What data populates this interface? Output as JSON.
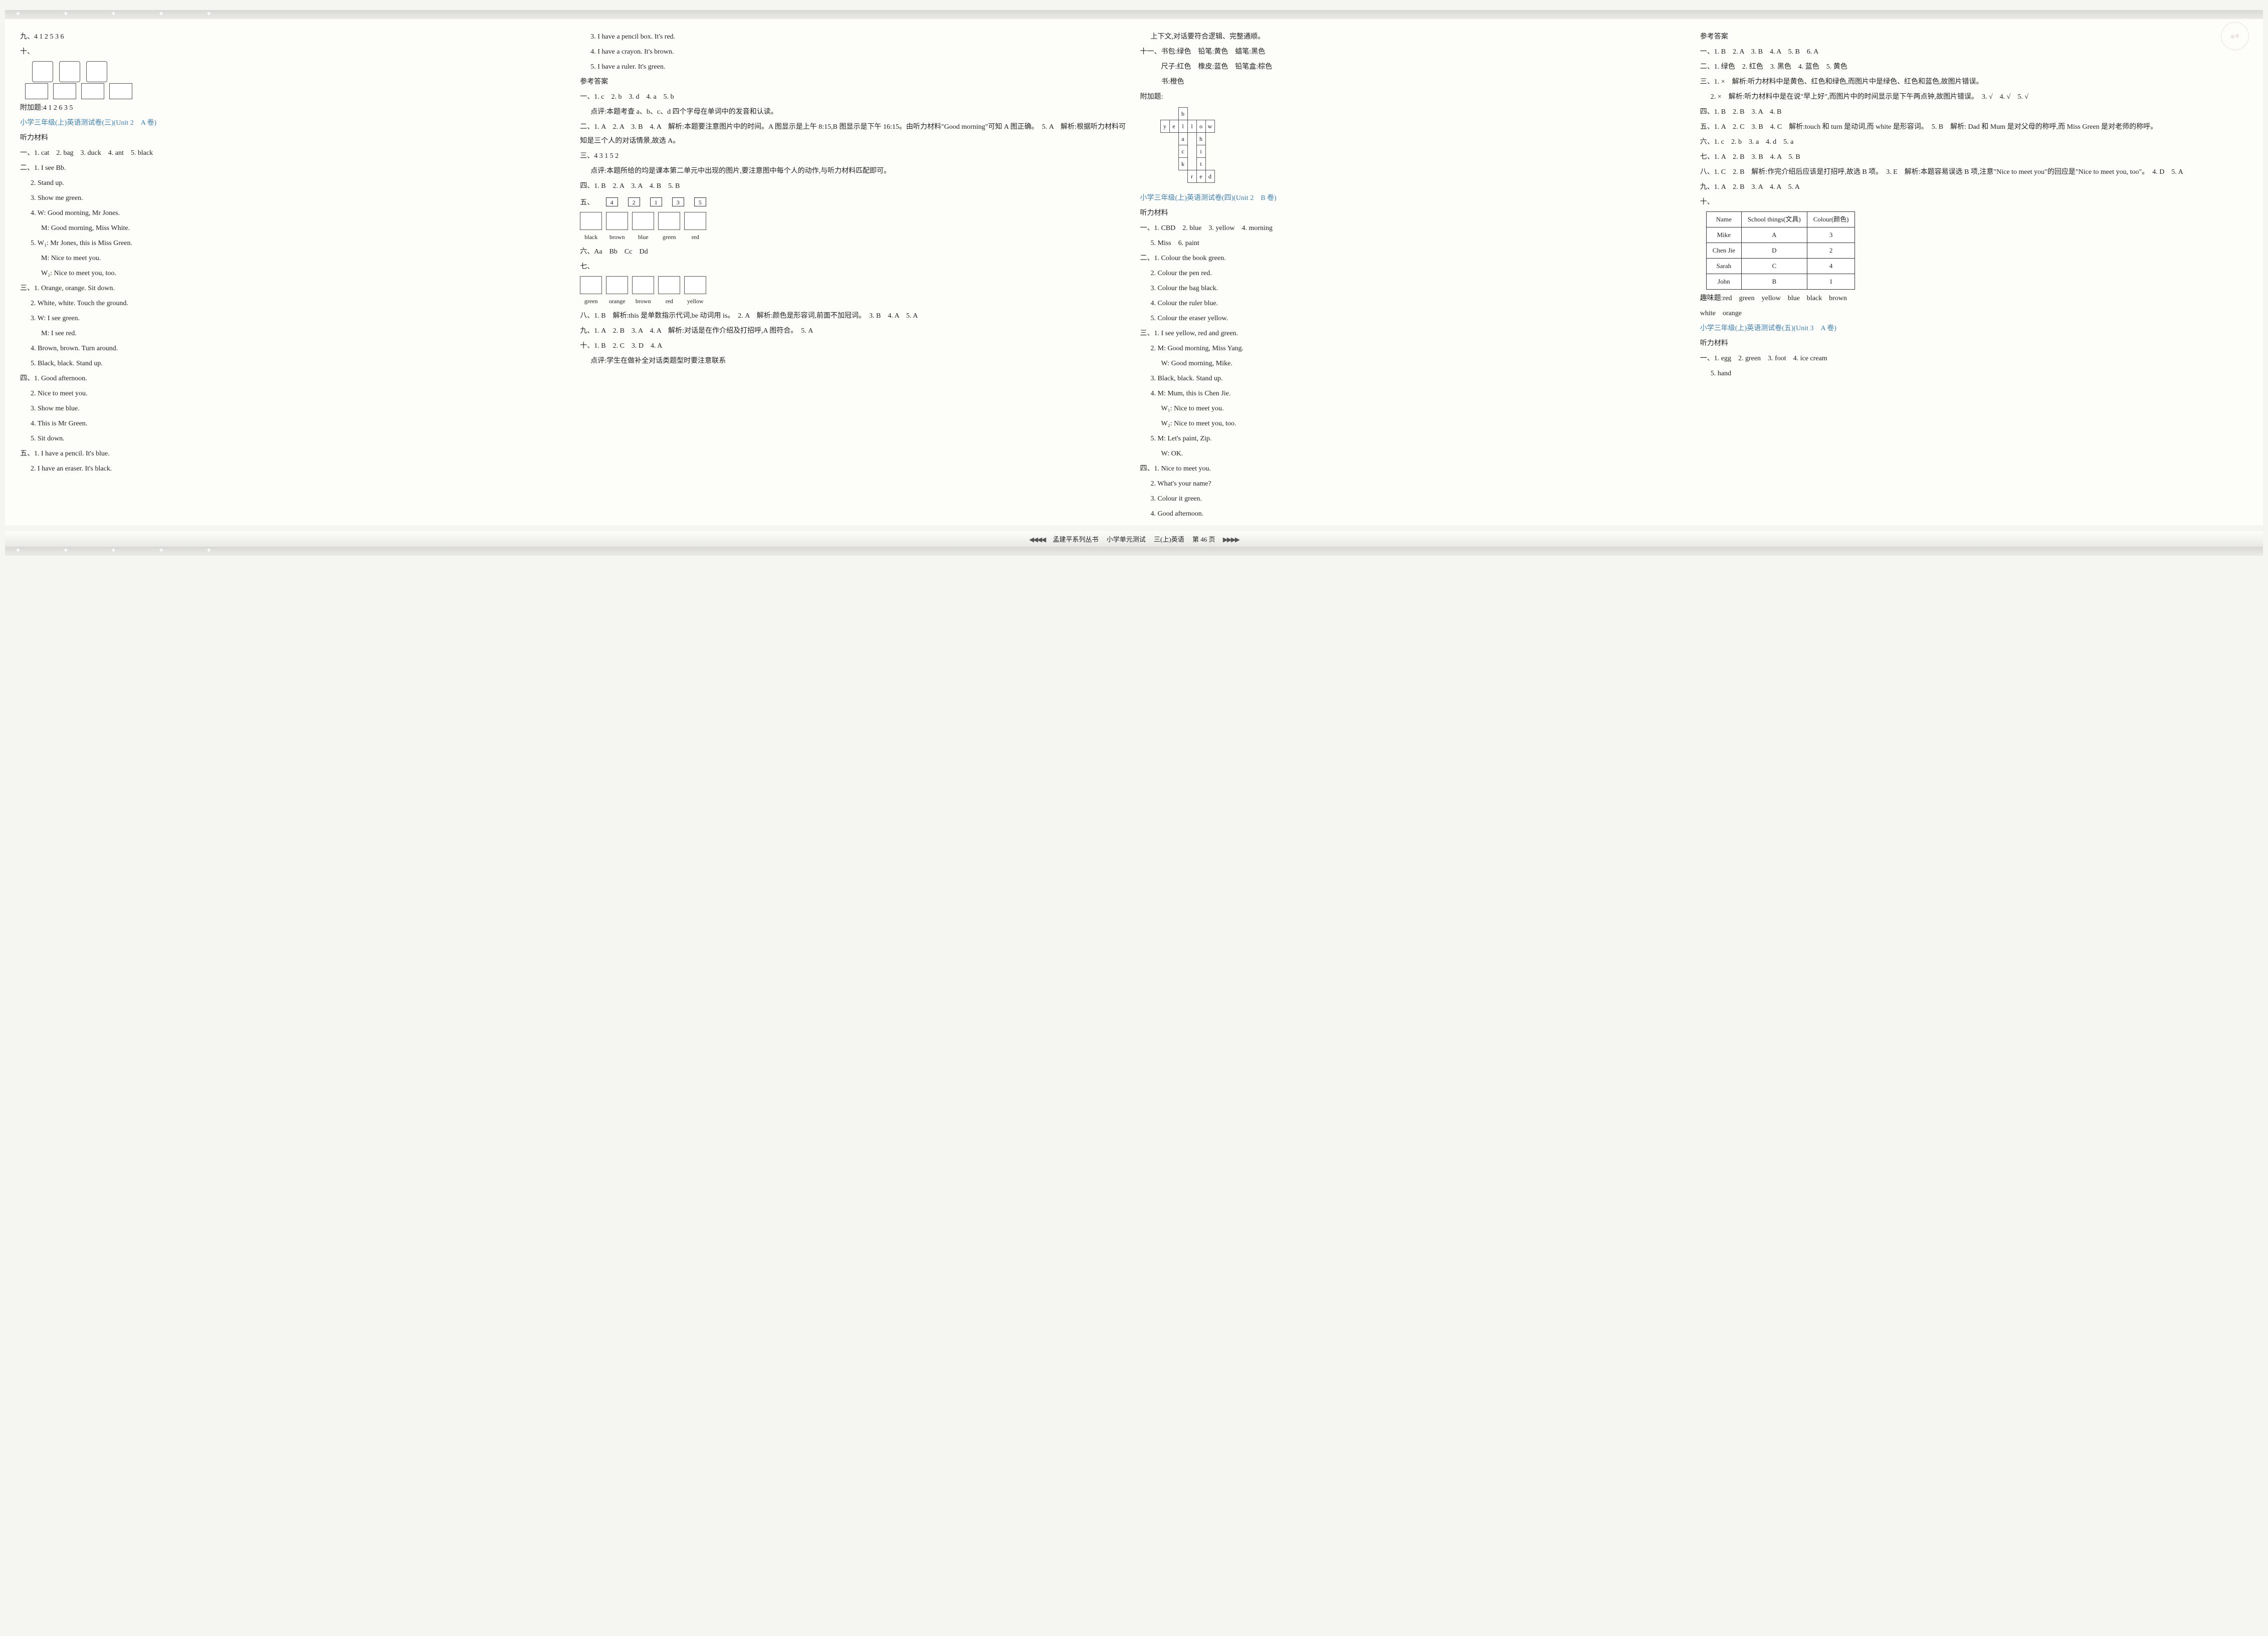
{
  "colors": {
    "section_title": "#3b7fb5",
    "text": "#222222",
    "page_bg": "#fdfdfa",
    "body_bg": "#f5f5f2",
    "border": "#333333",
    "stamp": "#ccaaaa"
  },
  "typography": {
    "base_font": "SimSun, 宋体, serif",
    "base_size_pt": 10.5,
    "line_height": 2.0
  },
  "page_footer": {
    "series": "孟建平系列丛书",
    "book": "小学单元测试",
    "grade": "三(上)英语",
    "page_label": "第 46 页",
    "arrow_left": "◀◀◀◀",
    "arrow_right": "▶▶▶▶"
  },
  "stamp_text": "参考",
  "col1": {
    "l01": "九、4 1 2 5 3 6",
    "l02": "十、",
    "l03": "附加题:4 1 2 6 3 5",
    "title1": "小学三年级(上)英语测试卷(三)(Unit 2　A 卷)",
    "l04": "听力材料",
    "l05": "一、1. cat　2. bag　3. duck　4. ant　5. black",
    "l06": "二、1. I see Bb.",
    "l07": "2. Stand up.",
    "l08": "3. Show me green.",
    "l09": "4. W: Good morning, Mr Jones.",
    "l10": "M: Good morning, Miss White.",
    "l11": "5. W₁: Mr Jones, this is Miss Green.",
    "l12": "M: Nice to meet you.",
    "l13": "W₂: Nice to meet you, too.",
    "l14": "三、1. Orange, orange. Sit down.",
    "l15": "2. White, white. Touch the ground.",
    "l16": "3. W: I see green.",
    "l17": "M: I see red.",
    "l18": "4. Brown, brown. Turn around.",
    "l19": "5. Black, black. Stand up.",
    "l20": "四、1. Good afternoon.",
    "l21": "2. Nice to meet you.",
    "l22": "3. Show me blue.",
    "l23": "4. This is Mr Green.",
    "l24": "5. Sit down.",
    "l25": "五、1. I have a pencil. It's blue.",
    "l26": "2. I have an eraser. It's black."
  },
  "col2": {
    "l01": "3. I have a pencil box. It's red.",
    "l02": "4. I have a crayon. It's brown.",
    "l03": "5. I have a ruler. It's green.",
    "l04": "参考答案",
    "l05": "一、1. c　2. b　3. d　4. a　5. b",
    "l06": "点评:本题考查 a、b、c、d 四个字母在单词中的发音和认读。",
    "l07": "二、1. A　2. A　3. B　4. A　解析:本题要注意图片中的时间。A 图显示是上午 8:15,B 图显示是下午 16:15。由听力材料\"Good morning\"可知 A 图正确。　5. A　解析:根据听力材料可知是三个人的对话情景,故选 A。",
    "l08": "三、4 3 1 5 2",
    "l09": "点评:本题所给的均是课本第二单元中出现的图片,要注意图中每个人的动作,与听力材料匹配即可。",
    "l10": "四、1. B　2. A　3. A　4. B　5. B",
    "l11": "五、",
    "numboxes": [
      "4",
      "2",
      "1",
      "3",
      "5"
    ],
    "match1": [
      "black",
      "brown",
      "blue",
      "green",
      "red"
    ],
    "l12": "六、Aa　Bb　Cc　Dd",
    "l13": "七、",
    "match2": [
      "green",
      "orange",
      "brown",
      "red",
      "yellow"
    ],
    "l14": "八、1. B　解析:this 是单数指示代词,be 动词用 is。　2. A　解析:颜色是形容词,前面不加冠词。　3. B　4. A　5. A",
    "l15": "九、1. A　2. B　3. A　4. A　解析:对话是在作介绍及打招呼,A 图符合。　5. A",
    "l16": "十、1. B　2. C　3. D　4. A",
    "l17": "点评:学生在做补全对话类题型时要注意联系"
  },
  "col3": {
    "l01": "上下文,对话要符合逻辑、完整通顺。",
    "l02": "十一、书包:绿色　铅笔:黄色　蜡笔:黑色",
    "l03": "尺子:红色　橡皮:蓝色　铅笔盒:棕色",
    "l04": "书:橙色",
    "l05": "附加题:",
    "cross": {
      "rows": [
        [
          "",
          "",
          "b",
          "",
          ""
        ],
        [
          "y",
          "e",
          "l",
          "l",
          "o",
          "w"
        ],
        [
          "",
          "",
          "a",
          "",
          "h",
          ""
        ],
        [
          "",
          "",
          "c",
          "",
          "i",
          ""
        ],
        [
          "",
          "",
          "k",
          "",
          "t",
          ""
        ],
        [
          "",
          "",
          "",
          "r",
          "e",
          "d"
        ]
      ]
    },
    "title1": "小学三年级(上)英语测试卷(四)(Unit 2　B 卷)",
    "l06": "听力材料",
    "l07": "一、1. CBD　2. blue　3. yellow　4. morning",
    "l08": "5. Miss　6. paint",
    "l09": "二、1. Colour the book green.",
    "l10": "2. Colour the pen red.",
    "l11": "3. Colour the bag black.",
    "l12": "4. Colour the ruler blue.",
    "l13": "5. Colour the eraser yellow.",
    "l14": "三、1. I see yellow, red and green.",
    "l15": "2. M: Good morning, Miss Yang.",
    "l16": "W: Good morning, Mike.",
    "l17": "3. Black, black. Stand up.",
    "l18": "4. M: Mum, this is Chen Jie.",
    "l19": "W₁: Nice to meet you.",
    "l20": "W₂: Nice to meet you, too.",
    "l21": "5. M: Let's paint, Zip.",
    "l22": "W: OK.",
    "l23": "四、1. Nice to meet you.",
    "l24": "2. What's your name?",
    "l25": "3. Colour it green.",
    "l26": "4. Good afternoon."
  },
  "col4": {
    "l01": "参考答案",
    "l02": "一、1. B　2. A　3. B　4. A　5. B　6. A",
    "l03": "二、1. 绿色　2. 红色　3. 黑色　4. 蓝色　5. 黄色",
    "l04": "三、1. ×　解析:听力材料中是黄色、红色和绿色,而图片中是绿色、红色和蓝色,故图片错误。",
    "l05": "2. ×　解析:听力材料中是在说\"早上好\",而图片中的时间显示是下午两点钟,故图片错误。　3. √　4. √　5. √",
    "l06": "四、1. B　2. B　3. A　4. B",
    "l07": "五、1. A　2. C　3. B　4. C　解析:touch 和 turn 是动词,而 white 是形容词。　5. B　解析: Dad 和 Mum 是对父母的称呼,而 Miss Green 是对老师的称呼。",
    "l08": "六、1. c　2. b　3. a　4. d　5. a",
    "l09": "七、1. A　2. B　3. B　4. A　5. B",
    "l10": "八、1. C　2. B　解析:作完介绍后应该是打招呼,故选 B 项。　3. E　解析:本题容易误选 B 项,注意\"Nice to meet you\"的回应是\"Nice to meet you, too\"。　4. D　5. A",
    "l11": "九、1. A　2. B　3. A　4. A　5. A",
    "l12": "十、",
    "table": {
      "headers": [
        "Name",
        "School things(文具)",
        "Colour(颜色)"
      ],
      "rows": [
        [
          "Mike",
          "A",
          "3"
        ],
        [
          "Chen Jie",
          "D",
          "2"
        ],
        [
          "Sarah",
          "C",
          "4"
        ],
        [
          "John",
          "B",
          "1"
        ]
      ]
    },
    "l13": "趣味题:red　green　yellow　blue　black　brown",
    "l14": "white　orange",
    "title1": "小学三年级(上)英语测试卷(五)(Unit 3　A 卷)",
    "l15": "听力材料",
    "l16": "一、1. egg　2. green　3. foot　4. ice cream",
    "l17": "5. hand"
  }
}
